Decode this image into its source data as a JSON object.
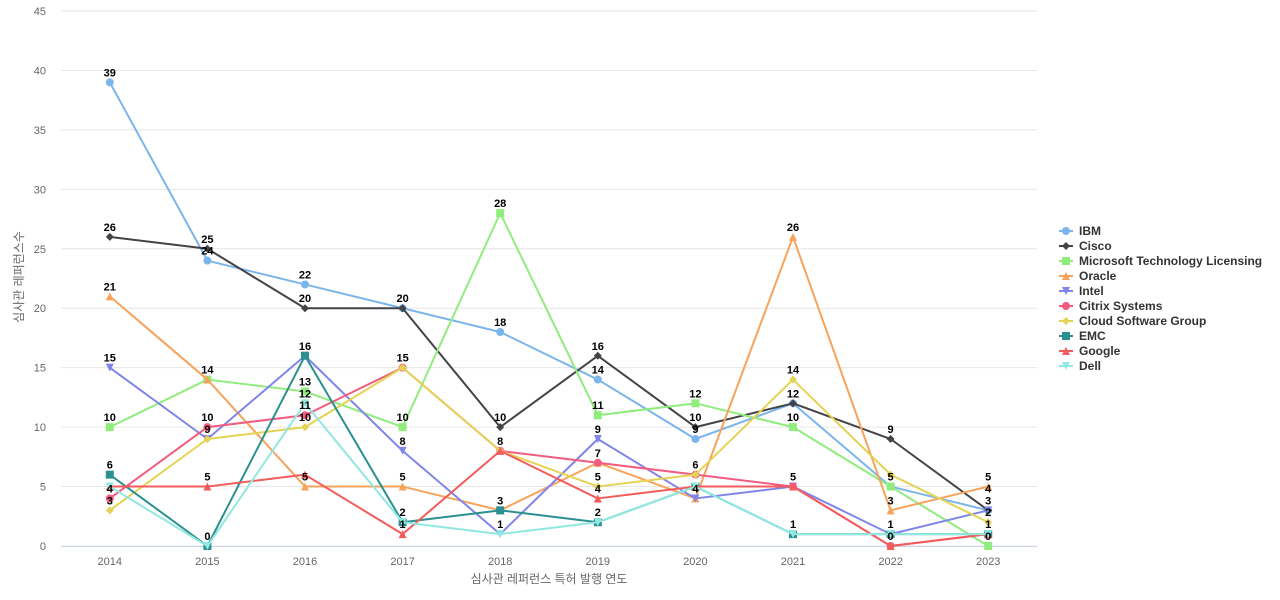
{
  "chart_data": {
    "type": "line",
    "title": "",
    "xlabel": "심사관 레퍼런스 특허 발행 연도",
    "ylabel": "심사관 레퍼런스수",
    "ylim": [
      0,
      45
    ],
    "yticks": [
      0,
      5,
      10,
      15,
      20,
      25,
      30,
      35,
      40,
      45
    ],
    "grid": true,
    "legend_position": "right",
    "categories": [
      "2014",
      "2015",
      "2016",
      "2017",
      "2018",
      "2019",
      "2020",
      "2021",
      "2022",
      "2023"
    ],
    "series": [
      {
        "name": "IBM",
        "color": "#7cb5ec",
        "marker": "circle",
        "values": [
          39,
          24,
          22,
          20,
          18,
          14,
          9,
          12,
          5,
          3
        ]
      },
      {
        "name": "Cisco",
        "color": "#434348",
        "marker": "diamond",
        "values": [
          26,
          25,
          20,
          20,
          10,
          16,
          10,
          12,
          9,
          3
        ]
      },
      {
        "name": "Microsoft Technology Licensing",
        "color": "#90ed7d",
        "marker": "square",
        "values": [
          10,
          14,
          13,
          10,
          28,
          11,
          12,
          10,
          5,
          0
        ]
      },
      {
        "name": "Oracle",
        "color": "#f7a35c",
        "marker": "triangle",
        "values": [
          21,
          14,
          5,
          5,
          3,
          7,
          4,
          26,
          3,
          5
        ]
      },
      {
        "name": "Intel",
        "color": "#8085e9",
        "marker": "triangle-down",
        "values": [
          15,
          9,
          16,
          8,
          1,
          9,
          4,
          5,
          1,
          3
        ]
      },
      {
        "name": "Citrix Systems",
        "color": "#f15c80",
        "marker": "circle",
        "values": [
          4,
          10,
          11,
          15,
          8,
          7,
          6,
          5,
          0,
          1
        ]
      },
      {
        "name": "Cloud Software Group",
        "color": "#e4d354",
        "marker": "diamond",
        "values": [
          3,
          9,
          10,
          15,
          8,
          5,
          6,
          14,
          6,
          2
        ]
      },
      {
        "name": "EMC",
        "color": "#2b908f",
        "marker": "square",
        "values": [
          6,
          0,
          16,
          2,
          3,
          2,
          5,
          1,
          1,
          1
        ]
      },
      {
        "name": "Google",
        "color": "#f45b5b",
        "marker": "triangle",
        "values": [
          5,
          5,
          6,
          1,
          8,
          4,
          5,
          5,
          0,
          1
        ]
      },
      {
        "name": "Dell",
        "color": "#91e8e1",
        "marker": "triangle-down",
        "values": [
          5,
          0,
          12,
          2,
          1,
          2,
          5,
          1,
          1,
          1
        ]
      }
    ],
    "data_labels": [
      {
        "x": "2014",
        "value": 39
      },
      {
        "x": "2014",
        "value": 26
      },
      {
        "x": "2014",
        "value": 21
      },
      {
        "x": "2014",
        "value": 15
      },
      {
        "x": "2014",
        "value": 10
      },
      {
        "x": "2014",
        "value": 6
      },
      {
        "x": "2014",
        "value": 4
      },
      {
        "x": "2014",
        "value": 3
      },
      {
        "x": "2015",
        "value": 25
      },
      {
        "x": "2015",
        "value": 24
      },
      {
        "x": "2015",
        "value": 14
      },
      {
        "x": "2015",
        "value": 10
      },
      {
        "x": "2015",
        "value": 9
      },
      {
        "x": "2015",
        "value": 5
      },
      {
        "x": "2015",
        "value": 0
      },
      {
        "x": "2016",
        "value": 22
      },
      {
        "x": "2016",
        "value": 20
      },
      {
        "x": "2016",
        "value": 16
      },
      {
        "x": "2016",
        "value": 13
      },
      {
        "x": "2016",
        "value": 12
      },
      {
        "x": "2016",
        "value": 11
      },
      {
        "x": "2016",
        "value": 10
      },
      {
        "x": "2016",
        "value": 5
      },
      {
        "x": "2017",
        "value": 20
      },
      {
        "x": "2017",
        "value": 15
      },
      {
        "x": "2017",
        "value": 10
      },
      {
        "x": "2017",
        "value": 8
      },
      {
        "x": "2017",
        "value": 5
      },
      {
        "x": "2017",
        "value": 2
      },
      {
        "x": "2017",
        "value": 1
      },
      {
        "x": "2018",
        "value": 28
      },
      {
        "x": "2018",
        "value": 18
      },
      {
        "x": "2018",
        "value": 10
      },
      {
        "x": "2018",
        "value": 8
      },
      {
        "x": "2018",
        "value": 3
      },
      {
        "x": "2018",
        "value": 1
      },
      {
        "x": "2019",
        "value": 16
      },
      {
        "x": "2019",
        "value": 14
      },
      {
        "x": "2019",
        "value": 11
      },
      {
        "x": "2019",
        "value": 9
      },
      {
        "x": "2019",
        "value": 7
      },
      {
        "x": "2019",
        "value": 5
      },
      {
        "x": "2019",
        "value": 4
      },
      {
        "x": "2019",
        "value": 2
      },
      {
        "x": "2020",
        "value": 12
      },
      {
        "x": "2020",
        "value": 10
      },
      {
        "x": "2020",
        "value": 9
      },
      {
        "x": "2020",
        "value": 6
      },
      {
        "x": "2020",
        "value": 4
      },
      {
        "x": "2021",
        "value": 26
      },
      {
        "x": "2021",
        "value": 14
      },
      {
        "x": "2021",
        "value": 12
      },
      {
        "x": "2021",
        "value": 10
      },
      {
        "x": "2021",
        "value": 5
      },
      {
        "x": "2021",
        "value": 1
      },
      {
        "x": "2022",
        "value": 9
      },
      {
        "x": "2022",
        "value": 5
      },
      {
        "x": "2022",
        "value": 3
      },
      {
        "x": "2022",
        "value": 1
      },
      {
        "x": "2022",
        "value": 0
      },
      {
        "x": "2023",
        "value": 5
      },
      {
        "x": "2023",
        "value": 4
      },
      {
        "x": "2023",
        "value": 3
      },
      {
        "x": "2023",
        "value": 2
      },
      {
        "x": "2023",
        "value": 1
      },
      {
        "x": "2023",
        "value": 0
      }
    ]
  }
}
